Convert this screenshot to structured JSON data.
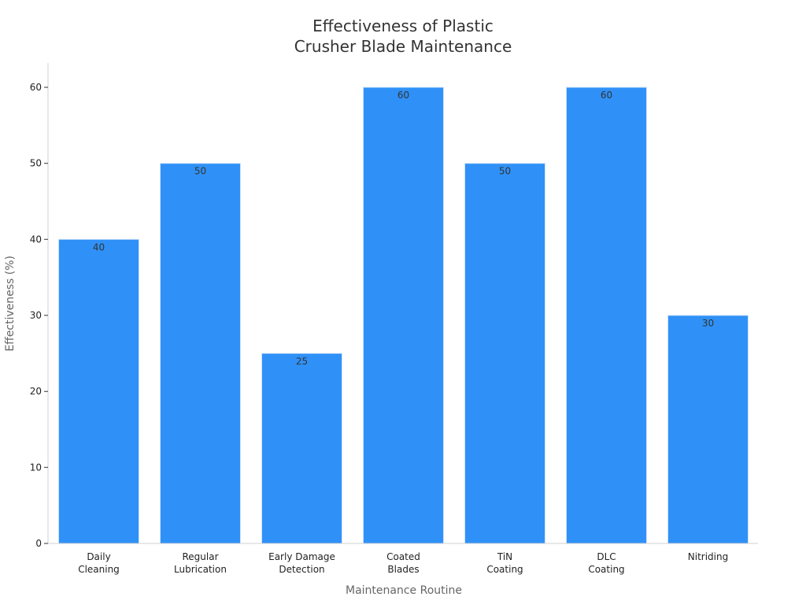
{
  "chart_data": {
    "type": "bar",
    "title_lines": [
      "Effectiveness of Plastic",
      "Crusher Blade Maintenance"
    ],
    "xlabel": "Maintenance Routine",
    "ylabel": "Effectiveness (%)",
    "categories": [
      [
        "Daily",
        "Cleaning"
      ],
      [
        "Regular",
        "Lubrication"
      ],
      [
        "Early Damage",
        "Detection"
      ],
      [
        "Coated",
        "Blades"
      ],
      [
        "TiN",
        "Coating"
      ],
      [
        "DLC",
        "Coating"
      ],
      [
        "Nitriding"
      ]
    ],
    "values": [
      40,
      50,
      25,
      60,
      50,
      60,
      30
    ],
    "data_labels": [
      "40",
      "50",
      "25",
      "60",
      "50",
      "60",
      "30"
    ],
    "ylim": [
      0,
      63
    ],
    "yticks": [
      0,
      10,
      20,
      30,
      40,
      50,
      60
    ],
    "ytick_labels": [
      "0",
      "10",
      "20",
      "30",
      "40",
      "50",
      "60"
    ],
    "grid": false,
    "legend": "none",
    "colors": {
      "bar": "#2f91f7",
      "bar_edge": "#cfe3fb"
    }
  }
}
